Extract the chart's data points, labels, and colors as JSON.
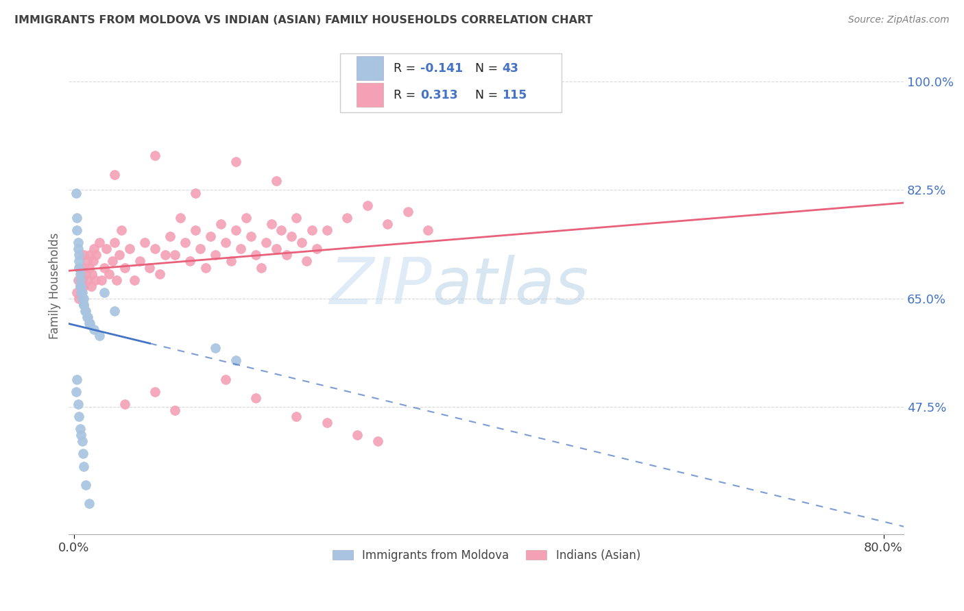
{
  "title": "IMMIGRANTS FROM MOLDOVA VS INDIAN (ASIAN) FAMILY HOUSEHOLDS CORRELATION CHART",
  "source": "Source: ZipAtlas.com",
  "ylabel": "Family Households",
  "moldova_color": "#a8c4e0",
  "moldova_edge_color": "#7aaad0",
  "indian_color": "#f4a0b5",
  "indian_edge_color": "#e07090",
  "moldova_line_color": "#4472c4",
  "indian_line_color": "#e8607a",
  "watermark_color": "#c8ddf0",
  "background_color": "#ffffff",
  "grid_color": "#d8d8d8",
  "blue_text_color": "#4472c4",
  "title_color": "#404040",
  "source_color": "#808080",
  "ylabel_color": "#606060",
  "ytick_color": "#4472c4",
  "xtick_color": "#404040",
  "xlim": [
    -0.005,
    0.82
  ],
  "ylim": [
    0.27,
    1.07
  ],
  "y_ticks": [
    0.475,
    0.65,
    0.825,
    1.0
  ],
  "y_tick_labels": [
    "47.5%",
    "65.0%",
    "82.5%",
    "100.0%"
  ],
  "x_ticks": [
    0.0,
    0.8
  ],
  "x_tick_labels": [
    "0.0%",
    "80.0%"
  ]
}
